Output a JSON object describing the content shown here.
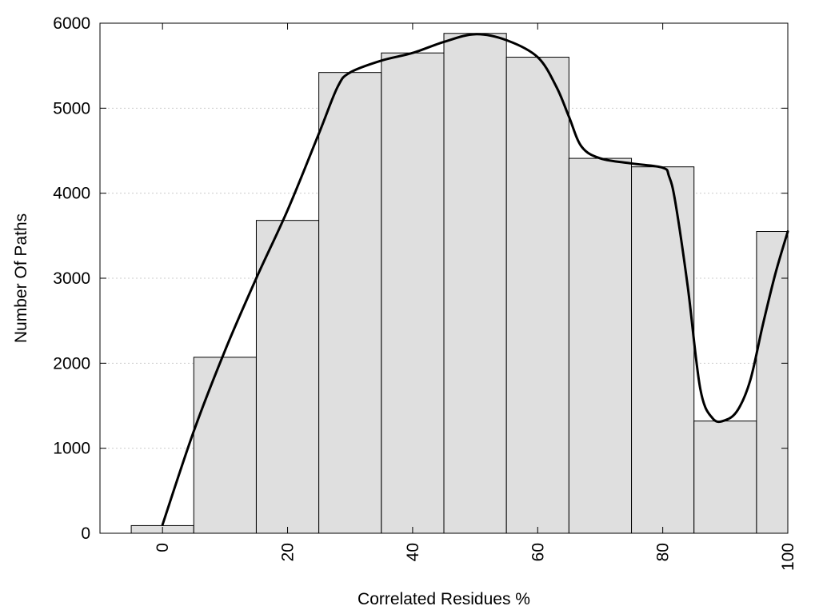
{
  "chart_data": {
    "type": "bar",
    "title": "",
    "xlabel": "Correlated Residues %",
    "ylabel": "Number Of Paths",
    "xlim": [
      -10,
      100
    ],
    "ylim": [
      0,
      6000
    ],
    "x_ticks": [
      0,
      20,
      40,
      60,
      80,
      100
    ],
    "y_ticks": [
      0,
      1000,
      2000,
      3000,
      4000,
      5000,
      6000
    ],
    "grid": "horizontal dotted",
    "legend": "none",
    "bar_color": "#dfdfdf",
    "bar_edge_color": "#000000",
    "line_color": "#000000",
    "bins": [
      {
        "x0": -5,
        "x1": 5,
        "value": 90
      },
      {
        "x0": 5,
        "x1": 15,
        "value": 2070
      },
      {
        "x0": 15,
        "x1": 25,
        "value": 3680
      },
      {
        "x0": 25,
        "x1": 35,
        "value": 5420
      },
      {
        "x0": 35,
        "x1": 45,
        "value": 5650
      },
      {
        "x0": 45,
        "x1": 55,
        "value": 5880
      },
      {
        "x0": 55,
        "x1": 65,
        "value": 5600
      },
      {
        "x0": 65,
        "x1": 75,
        "value": 4410
      },
      {
        "x0": 75,
        "x1": 85,
        "value": 4310
      },
      {
        "x0": 85,
        "x1": 95,
        "value": 1320
      },
      {
        "x0": 95,
        "x1": 100,
        "value": 3550
      }
    ],
    "curve": {
      "x": [
        0,
        5,
        10,
        15,
        20,
        25,
        28,
        30,
        35,
        40,
        45,
        50,
        55,
        60,
        63,
        65,
        67,
        70,
        75,
        80,
        81,
        82,
        84,
        86,
        88,
        90,
        92,
        94,
        96,
        98,
        100
      ],
      "y": [
        100,
        1200,
        2150,
        3000,
        3800,
        4700,
        5250,
        5420,
        5560,
        5650,
        5780,
        5870,
        5800,
        5600,
        5250,
        4900,
        4550,
        4410,
        4350,
        4300,
        4200,
        3900,
        2900,
        1700,
        1350,
        1330,
        1450,
        1800,
        2450,
        3050,
        3550
      ]
    }
  }
}
